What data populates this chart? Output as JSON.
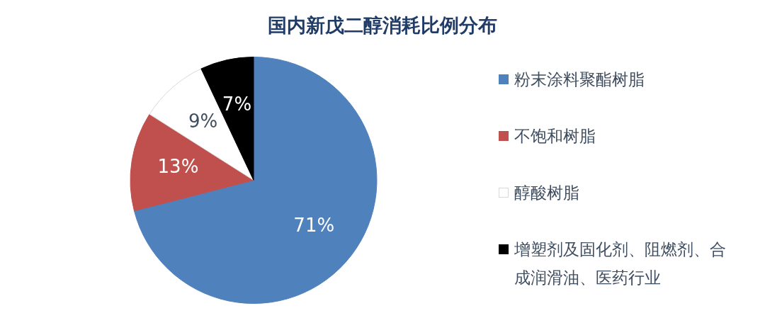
{
  "chart_data": {
    "type": "pie",
    "title": "国内新戊二醇消耗比例分布",
    "categories": [
      "粉末涂料聚酯树脂",
      "不饱和树脂",
      "醇酸树脂",
      "增塑剂及固化剂、阻燃剂、合成润滑油、医药行业"
    ],
    "values": [
      71,
      13,
      9,
      7
    ],
    "colors": [
      "#4f81bd",
      "#c0504d",
      "#ffffff",
      "#000000"
    ],
    "value_labels": [
      "71%",
      "13%",
      "9%",
      "7%"
    ],
    "legend": "right"
  }
}
